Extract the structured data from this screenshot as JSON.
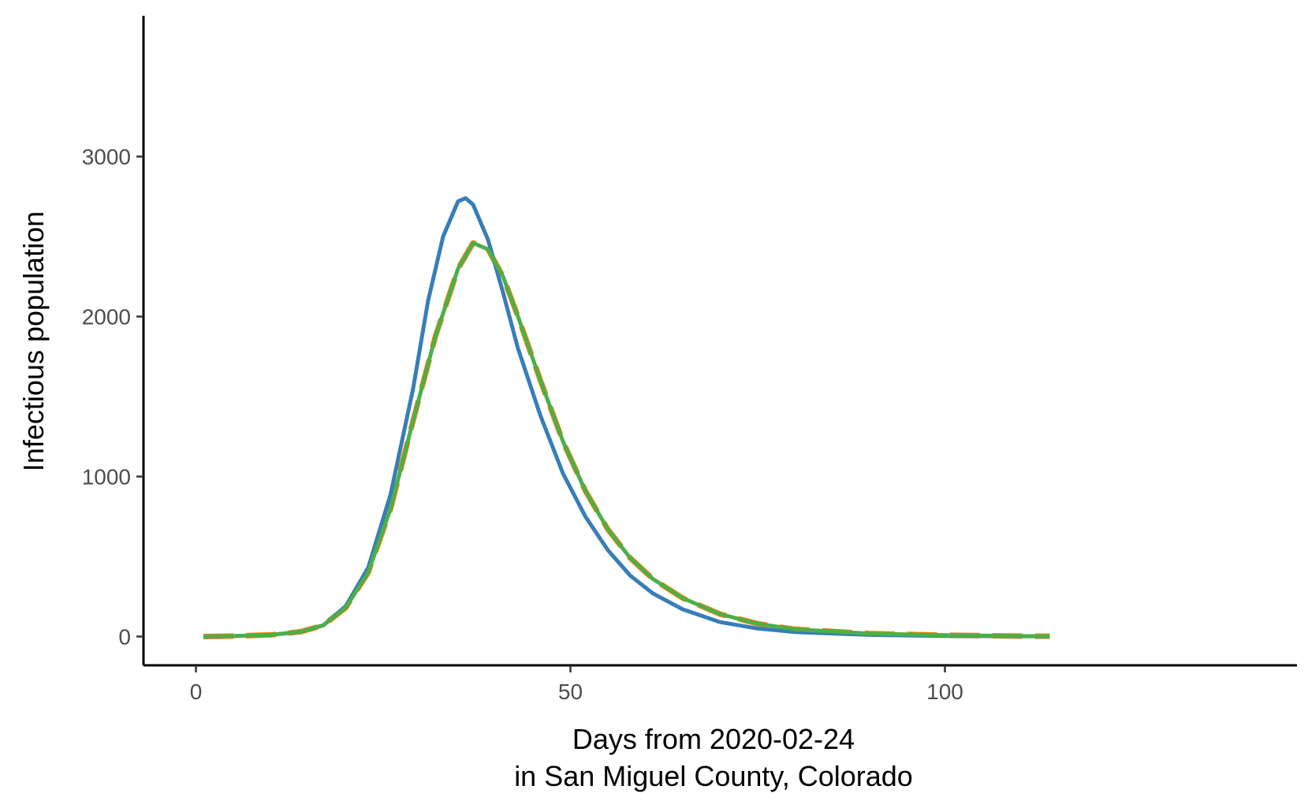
{
  "chart_data": {
    "type": "line",
    "title": "",
    "xlabel_lines": [
      "Days from 2020-02-24",
      "in San Miguel County, Colorado"
    ],
    "ylabel": "Infectious population",
    "xlim": [
      -7,
      147
    ],
    "ylim": [
      -180,
      3880
    ],
    "x_ticks": [
      0,
      50,
      100
    ],
    "y_ticks": [
      0,
      1000,
      2000,
      3000
    ],
    "grid": false,
    "legend": "none",
    "series": [
      {
        "color": "#e41a1c",
        "dash": "solid",
        "width": 3,
        "points": [
          [
            1,
            0
          ],
          [
            5,
            3
          ],
          [
            10,
            10
          ],
          [
            14,
            30
          ],
          [
            17,
            70
          ],
          [
            20,
            180
          ],
          [
            23,
            400
          ],
          [
            26,
            800
          ],
          [
            29,
            1350
          ],
          [
            32,
            1880
          ],
          [
            35,
            2300
          ],
          [
            37,
            2460
          ],
          [
            39,
            2420
          ],
          [
            41,
            2250
          ],
          [
            43,
            2000
          ],
          [
            46,
            1600
          ],
          [
            49,
            1220
          ],
          [
            52,
            910
          ],
          [
            55,
            670
          ],
          [
            58,
            490
          ],
          [
            61,
            360
          ],
          [
            65,
            240
          ],
          [
            70,
            140
          ],
          [
            75,
            80
          ],
          [
            80,
            45
          ],
          [
            90,
            18
          ],
          [
            100,
            8
          ],
          [
            110,
            3
          ],
          [
            114,
            2
          ]
        ]
      },
      {
        "color": "#ff7f00",
        "dash": "long-dash",
        "width": 7,
        "points": [
          [
            1,
            0
          ],
          [
            5,
            3
          ],
          [
            10,
            10
          ],
          [
            14,
            30
          ],
          [
            17,
            70
          ],
          [
            20,
            180
          ],
          [
            23,
            400
          ],
          [
            26,
            800
          ],
          [
            29,
            1350
          ],
          [
            32,
            1880
          ],
          [
            35,
            2300
          ],
          [
            37,
            2460
          ],
          [
            39,
            2420
          ],
          [
            41,
            2250
          ],
          [
            43,
            2000
          ],
          [
            46,
            1600
          ],
          [
            49,
            1220
          ],
          [
            52,
            910
          ],
          [
            55,
            670
          ],
          [
            58,
            490
          ],
          [
            61,
            360
          ],
          [
            65,
            240
          ],
          [
            70,
            140
          ],
          [
            75,
            80
          ],
          [
            80,
            45
          ],
          [
            90,
            18
          ],
          [
            100,
            8
          ],
          [
            110,
            3
          ],
          [
            114,
            2
          ]
        ]
      },
      {
        "color": "#377eb8",
        "dash": "solid",
        "width": 5,
        "points": [
          [
            1,
            0
          ],
          [
            5,
            3
          ],
          [
            10,
            10
          ],
          [
            14,
            30
          ],
          [
            17,
            70
          ],
          [
            20,
            190
          ],
          [
            23,
            430
          ],
          [
            26,
            890
          ],
          [
            29,
            1550
          ],
          [
            31,
            2100
          ],
          [
            33,
            2500
          ],
          [
            35,
            2720
          ],
          [
            36,
            2740
          ],
          [
            37,
            2700
          ],
          [
            39,
            2480
          ],
          [
            41,
            2150
          ],
          [
            43,
            1800
          ],
          [
            46,
            1380
          ],
          [
            49,
            1020
          ],
          [
            52,
            750
          ],
          [
            55,
            540
          ],
          [
            58,
            380
          ],
          [
            61,
            270
          ],
          [
            65,
            170
          ],
          [
            70,
            90
          ],
          [
            75,
            50
          ],
          [
            80,
            28
          ],
          [
            90,
            10
          ],
          [
            100,
            4
          ],
          [
            110,
            2
          ],
          [
            114,
            1
          ]
        ]
      },
      {
        "color": "#4daf4a",
        "dash": "solid",
        "width": 5,
        "points": [
          [
            1,
            0
          ],
          [
            5,
            3
          ],
          [
            10,
            10
          ],
          [
            14,
            30
          ],
          [
            17,
            70
          ],
          [
            20,
            180
          ],
          [
            23,
            400
          ],
          [
            26,
            800
          ],
          [
            29,
            1350
          ],
          [
            32,
            1880
          ],
          [
            35,
            2300
          ],
          [
            37,
            2460
          ],
          [
            39,
            2420
          ],
          [
            41,
            2250
          ],
          [
            43,
            2000
          ],
          [
            46,
            1600
          ],
          [
            49,
            1220
          ],
          [
            52,
            910
          ],
          [
            55,
            670
          ],
          [
            58,
            490
          ],
          [
            61,
            360
          ],
          [
            65,
            240
          ],
          [
            70,
            140
          ],
          [
            75,
            80
          ],
          [
            80,
            45
          ],
          [
            90,
            18
          ],
          [
            100,
            8
          ],
          [
            110,
            3
          ],
          [
            114,
            2
          ]
        ]
      }
    ]
  }
}
